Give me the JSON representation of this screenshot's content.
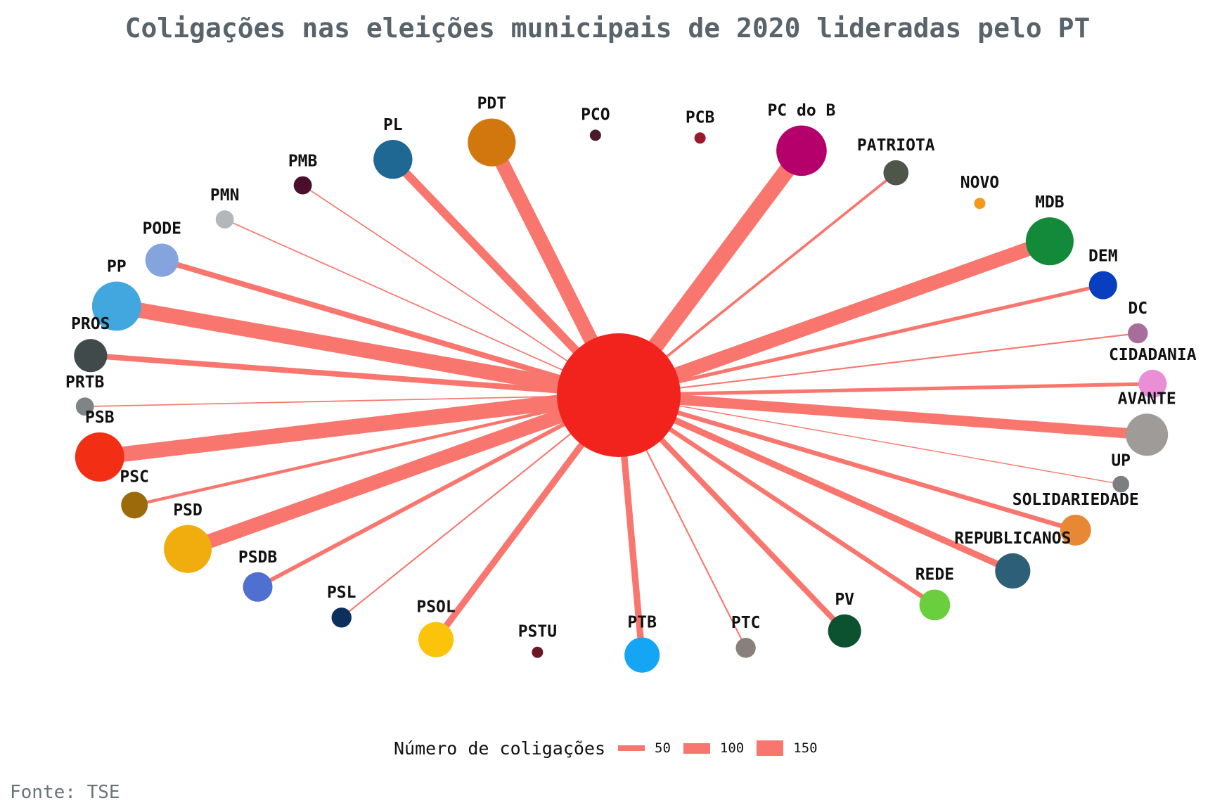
{
  "title": "Coligações nas eleições municipais de 2020 lideradas pelo PT",
  "source": "Fonte: TSE",
  "legend": {
    "title": "Número de coligações",
    "items": [
      {
        "label": "50",
        "value": 50
      },
      {
        "label": "100",
        "value": 100
      },
      {
        "label": "150",
        "value": 150
      }
    ]
  },
  "colors": {
    "edge": "#f8766d",
    "center": "#f2231d"
  },
  "center": {
    "name": "PT"
  },
  "nodes": [
    {
      "name": "PP",
      "color": "#42a7de",
      "weight": 150
    },
    {
      "name": "PODE",
      "color": "#85a4dd",
      "weight": 50
    },
    {
      "name": "PMN",
      "color": "#b3b7ba",
      "weight": 5
    },
    {
      "name": "PMB",
      "color": "#4a0f2d",
      "weight": 5
    },
    {
      "name": "PL",
      "color": "#1f6893",
      "weight": 80
    },
    {
      "name": "PDT",
      "color": "#d1770e",
      "weight": 140
    },
    {
      "name": "PCO",
      "color": "#4a1b2a",
      "weight": 0
    },
    {
      "name": "PCB",
      "color": "#9a1a2c",
      "weight": 0
    },
    {
      "name": "PC do B",
      "color": "#b5006b",
      "weight": 160
    },
    {
      "name": "PATRIOTA",
      "color": "#4f5548",
      "weight": 20
    },
    {
      "name": "NOVO",
      "color": "#f39a1c",
      "weight": 0
    },
    {
      "name": "MDB",
      "color": "#128a39",
      "weight": 140
    },
    {
      "name": "DEM",
      "color": "#073fc0",
      "weight": 30
    },
    {
      "name": "DC",
      "color": "#a86e9b",
      "weight": 8
    },
    {
      "name": "CIDADANIA",
      "color": "#ea8fd5",
      "weight": 30
    },
    {
      "name": "AVANTE",
      "color": "#9f9b98",
      "weight": 100
    },
    {
      "name": "UP",
      "color": "#7b7f80",
      "weight": 3
    },
    {
      "name": "SOLIDARIEDADE",
      "color": "#e88734",
      "weight": 40
    },
    {
      "name": "REPUBLICANOS",
      "color": "#2e5f78",
      "weight": 60
    },
    {
      "name": "REDE",
      "color": "#69cf3c",
      "weight": 40
    },
    {
      "name": "PV",
      "color": "#0d5230",
      "weight": 50
    },
    {
      "name": "PTC",
      "color": "#8a807b",
      "weight": 8
    },
    {
      "name": "PTB",
      "color": "#14a5f4",
      "weight": 60
    },
    {
      "name": "PSTU",
      "color": "#6e1724",
      "weight": 0
    },
    {
      "name": "PSOL",
      "color": "#fbc40a",
      "weight": 60
    },
    {
      "name": "PSL",
      "color": "#0c2f5c",
      "weight": 8
    },
    {
      "name": "PSDB",
      "color": "#4f6fd1",
      "weight": 35
    },
    {
      "name": "PSD",
      "color": "#f0ad0d",
      "weight": 140
    },
    {
      "name": "PSC",
      "color": "#9c6a0a",
      "weight": 25
    },
    {
      "name": "PSB",
      "color": "#f22e14",
      "weight": 150
    },
    {
      "name": "PRTB",
      "color": "#7e8587",
      "weight": 5
    },
    {
      "name": "PROS",
      "color": "#414a4b",
      "weight": 50
    }
  ]
}
